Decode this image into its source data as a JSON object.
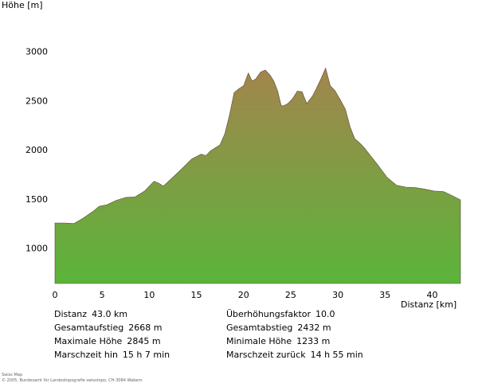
{
  "chart_data": {
    "type": "area",
    "ylabel": "Höhe [m]",
    "xlabel": "Distanz [km]",
    "xlim": [
      0,
      43
    ],
    "ylim": [
      640,
      3150
    ],
    "yticks": [
      1000,
      1500,
      2000,
      2500,
      3000
    ],
    "xticks": [
      0,
      5,
      10,
      15,
      20,
      25,
      30,
      35,
      40
    ],
    "grid": false,
    "fill_gradient": {
      "top": "#a3854d",
      "bottom": "#5ab53a"
    },
    "x": [
      0,
      1,
      2,
      3,
      4,
      4.7,
      5.5,
      6.5,
      7.5,
      8.5,
      9.5,
      10.5,
      11,
      11.5,
      12.5,
      13.5,
      14.5,
      15.5,
      16,
      16.5,
      17.5,
      18,
      18.5,
      19,
      19.5,
      20,
      20.5,
      20.9,
      21.3,
      21.8,
      22.3,
      22.8,
      23.2,
      23.6,
      24,
      24.3,
      24.7,
      25.2,
      25.7,
      26.2,
      26.7,
      27.3,
      27.7,
      28.2,
      28.7,
      29.2,
      29.7,
      30,
      30.3,
      30.8,
      31.3,
      31.8,
      32.3,
      32.8,
      33.2,
      34.2,
      35.2,
      36.2,
      37.2,
      38.2,
      39.2,
      40.2,
      41.2,
      42.2,
      43
    ],
    "y": [
      1255,
      1255,
      1250,
      1305,
      1370,
      1425,
      1440,
      1485,
      1515,
      1520,
      1580,
      1680,
      1660,
      1630,
      1720,
      1810,
      1905,
      1955,
      1940,
      1990,
      2050,
      2160,
      2350,
      2580,
      2620,
      2650,
      2780,
      2700,
      2720,
      2790,
      2810,
      2760,
      2700,
      2600,
      2445,
      2450,
      2470,
      2520,
      2595,
      2590,
      2470,
      2545,
      2620,
      2720,
      2830,
      2650,
      2600,
      2550,
      2500,
      2410,
      2230,
      2110,
      2070,
      2020,
      1970,
      1850,
      1720,
      1640,
      1620,
      1615,
      1600,
      1580,
      1575,
      1530,
      1490
    ]
  },
  "stats": [
    {
      "label": "Distanz",
      "value": "43.0 km"
    },
    {
      "label": "Überhöhungsfaktor",
      "value": "10.0"
    },
    {
      "label": "Gesamtaufstieg",
      "value": "2668 m"
    },
    {
      "label": "Gesamtabstieg",
      "value": "2432 m"
    },
    {
      "label": "Maximale Höhe",
      "value": "2845 m"
    },
    {
      "label": "Minimale Höhe",
      "value": "1233 m"
    },
    {
      "label": "Marschzeit hin",
      "value": "15 h 7 min"
    },
    {
      "label": "Marschzeit zurück",
      "value": "14 h 55 min"
    }
  ],
  "credits": [
    "Swiss Map",
    "© 2005, Bundesamt für Landestopografie swisstopo, CH-3084 Wabern"
  ]
}
